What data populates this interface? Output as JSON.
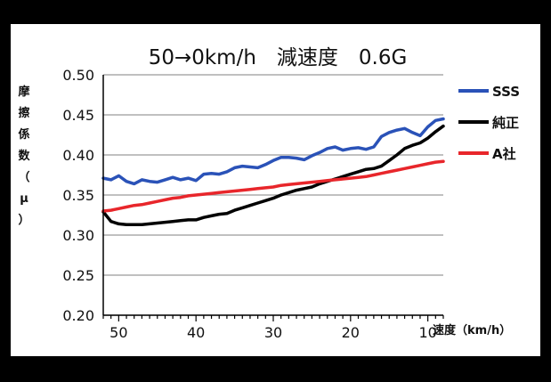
{
  "chart_data": {
    "type": "line",
    "title": "50→0km/h　減速度　0.6G",
    "ylabel_chars": [
      "摩",
      "擦",
      "係",
      "数",
      "（",
      "μ",
      "）"
    ],
    "xlabel": "速度（km/h）",
    "ylim": [
      0.2,
      0.5
    ],
    "yticks": [
      0.2,
      0.25,
      0.3,
      0.35,
      0.4,
      0.45,
      0.5
    ],
    "ytick_labels": [
      "0.20",
      "0.25",
      "0.30",
      "0.35",
      "0.40",
      "0.45",
      "0.50"
    ],
    "xlim": [
      52,
      8
    ],
    "xticks": [
      50,
      40,
      30,
      20,
      10
    ],
    "xtick_labels": [
      "50",
      "40",
      "30",
      "20",
      "10"
    ],
    "grid": "horizontal",
    "legend": "right",
    "series": [
      {
        "name": "SSS",
        "color": "#2a52b8",
        "x": [
          52,
          51,
          50,
          49,
          48,
          47,
          46,
          45,
          44,
          43,
          42,
          41,
          40,
          39,
          38,
          37,
          36,
          35,
          34,
          33,
          32,
          31,
          30,
          29,
          28,
          27,
          26,
          25,
          24,
          23,
          22,
          21,
          20,
          19,
          18,
          17,
          16,
          15,
          14,
          13,
          12,
          11,
          10,
          9,
          8
        ],
        "values": [
          0.371,
          0.369,
          0.374,
          0.367,
          0.364,
          0.369,
          0.367,
          0.366,
          0.369,
          0.372,
          0.369,
          0.371,
          0.368,
          0.376,
          0.377,
          0.376,
          0.379,
          0.384,
          0.386,
          0.385,
          0.384,
          0.388,
          0.393,
          0.397,
          0.397,
          0.396,
          0.394,
          0.399,
          0.403,
          0.408,
          0.41,
          0.406,
          0.408,
          0.409,
          0.407,
          0.41,
          0.423,
          0.428,
          0.431,
          0.433,
          0.428,
          0.424,
          0.435,
          0.443,
          0.445
        ]
      },
      {
        "name": "純正",
        "color": "#000000",
        "x": [
          52,
          51,
          50,
          49,
          48,
          47,
          46,
          45,
          44,
          43,
          42,
          41,
          40,
          39,
          38,
          37,
          36,
          35,
          34,
          33,
          32,
          31,
          30,
          29,
          28,
          27,
          26,
          25,
          24,
          23,
          22,
          21,
          20,
          19,
          18,
          17,
          16,
          15,
          14,
          13,
          12,
          11,
          10,
          9,
          8
        ],
        "values": [
          0.329,
          0.317,
          0.314,
          0.313,
          0.313,
          0.313,
          0.314,
          0.315,
          0.316,
          0.317,
          0.318,
          0.319,
          0.319,
          0.322,
          0.324,
          0.326,
          0.327,
          0.331,
          0.334,
          0.337,
          0.34,
          0.343,
          0.346,
          0.35,
          0.353,
          0.356,
          0.358,
          0.36,
          0.364,
          0.367,
          0.37,
          0.373,
          0.376,
          0.379,
          0.382,
          0.383,
          0.386,
          0.393,
          0.4,
          0.408,
          0.412,
          0.415,
          0.421,
          0.429,
          0.436
        ]
      },
      {
        "name": "A社",
        "color": "#e8262b",
        "x": [
          52,
          51,
          50,
          49,
          48,
          47,
          46,
          45,
          44,
          43,
          42,
          41,
          40,
          39,
          38,
          37,
          36,
          35,
          34,
          33,
          32,
          31,
          30,
          29,
          28,
          27,
          26,
          25,
          24,
          23,
          22,
          21,
          20,
          19,
          18,
          17,
          16,
          15,
          14,
          13,
          12,
          11,
          10,
          9,
          8
        ],
        "values": [
          0.33,
          0.331,
          0.333,
          0.335,
          0.337,
          0.338,
          0.34,
          0.342,
          0.344,
          0.346,
          0.347,
          0.349,
          0.35,
          0.351,
          0.352,
          0.353,
          0.354,
          0.355,
          0.356,
          0.357,
          0.358,
          0.359,
          0.36,
          0.362,
          0.363,
          0.364,
          0.365,
          0.366,
          0.367,
          0.368,
          0.369,
          0.37,
          0.371,
          0.372,
          0.373,
          0.375,
          0.377,
          0.379,
          0.381,
          0.383,
          0.385,
          0.387,
          0.389,
          0.391,
          0.392
        ]
      }
    ]
  }
}
